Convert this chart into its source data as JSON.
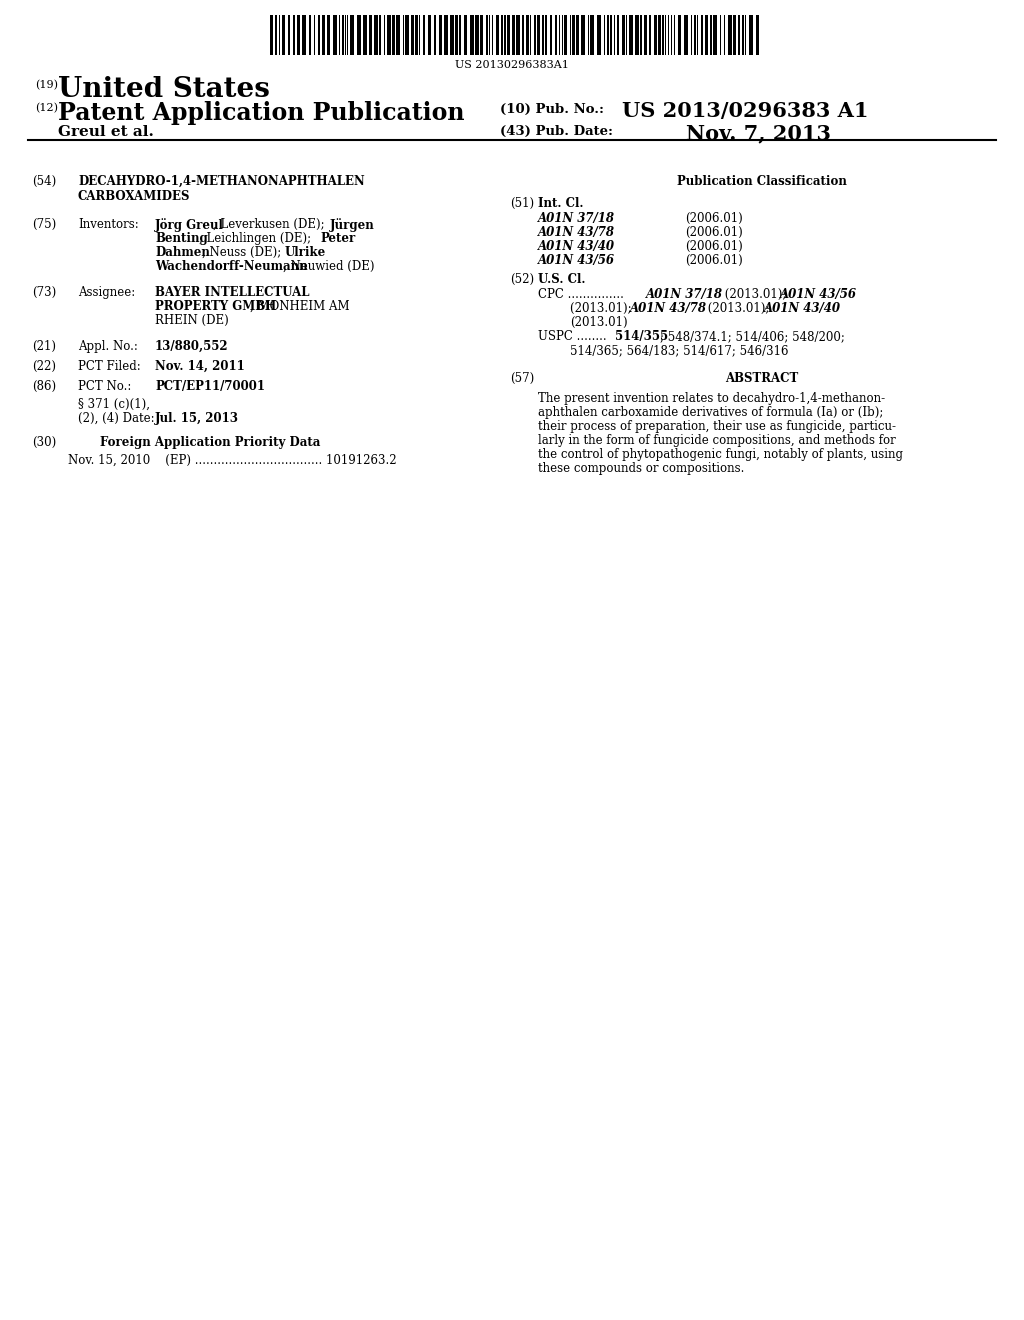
{
  "background_color": "#ffffff",
  "barcode_text": "US 20130296383A1",
  "patent_number_label": "(19)",
  "patent_title_line1": "United States",
  "app_pub_label": "(12)",
  "app_pub_title": "Patent Application Publication",
  "pub_no_label": "(10) Pub. No.:",
  "pub_no_value": "US 2013/0296383 A1",
  "pub_date_label": "(43) Pub. Date:",
  "pub_date_value": "Nov. 7, 2013",
  "inventor_label": "Greul et al.",
  "title_54_label": "(54)",
  "title_54_text_line1": "DECAHYDRO-1,4-METHANONAPHTHALEN",
  "title_54_text_line2": "CARBOXAMIDES",
  "pub_class_header": "Publication Classification",
  "inventors_label": "(75)",
  "inventors_tag": "Inventors:",
  "inventors_text_line1_bold": "Jörg Greul",
  "inventors_text_line1_norm": ", Leverkusen (DE); ",
  "inventors_text_line1_bold2": "Jürgen",
  "inventors_text_line2_bold": "Benting",
  "inventors_text_line2_norm": ", Leichlingen (DE); ",
  "inventors_text_line2_bold2": "Peter",
  "inventors_text_line3_bold": "Dahmen",
  "inventors_text_line3_norm": ", Neuss (DE); ",
  "inventors_text_line3_bold2": "Ulrike",
  "inventors_text_line4_bold": "Wachendorff-Neumann",
  "inventors_text_line4_norm": ", Neuwied (DE)",
  "int_cl_label": "(51)",
  "int_cl_header": "Int. Cl.",
  "int_cl_entries": [
    {
      "code": "A01N 37/18",
      "year": "(2006.01)"
    },
    {
      "code": "A01N 43/78",
      "year": "(2006.01)"
    },
    {
      "code": "A01N 43/40",
      "year": "(2006.01)"
    },
    {
      "code": "A01N 43/56",
      "year": "(2006.01)"
    }
  ],
  "us_cl_label": "(52)",
  "us_cl_header": "U.S. Cl.",
  "assignee_label": "(73)",
  "assignee_tag": "Assignee:",
  "assignee_line1_bold": "BAYER INTELLECTUAL",
  "assignee_line2_bold": "PROPERTY GMBH",
  "assignee_line2_norm": ", MONHEIM AM",
  "assignee_line3": "RHEIN (DE)",
  "appl_label": "(21)",
  "appl_tag": "Appl. No.:",
  "appl_value": "13/880,552",
  "pct_filed_label": "(22)",
  "pct_filed_tag": "PCT Filed:",
  "pct_filed_value": "Nov. 14, 2011",
  "pct_no_label": "(86)",
  "pct_no_tag": "PCT No.:",
  "pct_no_value": "PCT/EP11/70001",
  "section371_line1": "§ 371 (c)(1),",
  "section371_line2": "(2), (4) Date:",
  "section371_date": "Jul. 15, 2013",
  "foreign_app_label": "(30)",
  "foreign_app_header": "Foreign Application Priority Data",
  "foreign_app_line": "Nov. 15, 2010    (EP) .................................. 10191263.2",
  "abstract_label": "(57)",
  "abstract_header": "ABSTRACT",
  "abstract_lines": [
    "The present invention relates to decahydro-1,4-methanon-",
    "aphthalen carboxamide derivatives of formula (Ia) or (Ib);",
    "their process of preparation, their use as fungicide, particu-",
    "larly in the form of fungicide compositions, and methods for",
    "the control of phytopathogenic fungi, notably of plants, using",
    "these compounds or compositions."
  ]
}
